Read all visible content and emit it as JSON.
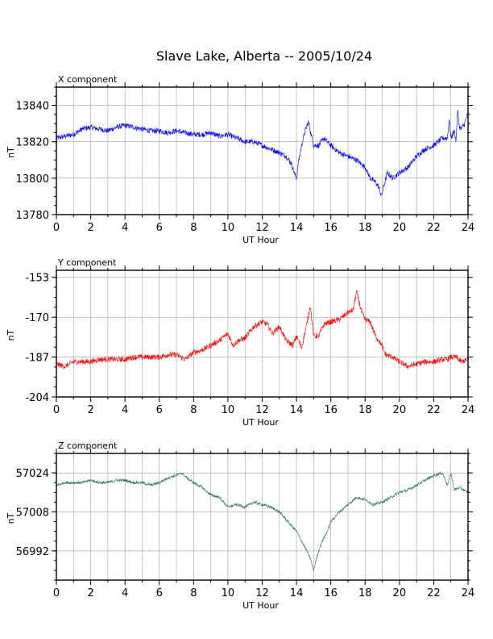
{
  "title": "Slave Lake, Alberta -- 2005/10/24",
  "chart_data": [
    {
      "type": "line",
      "panel_title": "X component",
      "xlabel": "UT Hour",
      "ylabel": "nT",
      "xlim": [
        0,
        24
      ],
      "ylim": [
        13780,
        13850
      ],
      "xticks": [
        0,
        2,
        4,
        6,
        8,
        10,
        12,
        14,
        16,
        18,
        20,
        22,
        24
      ],
      "yticks": [
        13780,
        13800,
        13820,
        13840
      ],
      "grid": true,
      "series": [
        {
          "color": "#0000ff",
          "noise": 1.5,
          "x": [
            0,
            0.5,
            1,
            1.5,
            2,
            2.5,
            3,
            3.5,
            4,
            4.5,
            5,
            5.5,
            6,
            6.5,
            7,
            7.5,
            8,
            8.5,
            9,
            9.5,
            10,
            10.5,
            11,
            11.5,
            12,
            12.5,
            13,
            13.4,
            13.7,
            13.9,
            14.0,
            14.1,
            14.3,
            14.5,
            14.7,
            14.8,
            15.0,
            15.3,
            15.6,
            16,
            16.5,
            17,
            17.5,
            18,
            18.3,
            18.6,
            18.8,
            18.95,
            19.1,
            19.3,
            19.6,
            20,
            20.5,
            21,
            21.5,
            22,
            22.5,
            22.8,
            22.9,
            23.0,
            23.2,
            23.3,
            23.4,
            23.5,
            23.6,
            23.8,
            24
          ],
          "y": [
            13822,
            13823,
            13824,
            13827,
            13828,
            13827,
            13826,
            13828,
            13829,
            13828,
            13827,
            13826,
            13826,
            13825,
            13826,
            13825,
            13824,
            13824,
            13825,
            13823,
            13824,
            13822,
            13820,
            13820,
            13818,
            13816,
            13814,
            13812,
            13808,
            13802,
            13800,
            13808,
            13818,
            13826,
            13831,
            13826,
            13818,
            13818,
            13822,
            13818,
            13814,
            13812,
            13810,
            13806,
            13800,
            13798,
            13795,
            13790,
            13796,
            13803,
            13800,
            13803,
            13806,
            13812,
            13816,
            13818,
            13822,
            13822,
            13832,
            13822,
            13826,
            13820,
            13837,
            13828,
            13827,
            13830,
            13836
          ]
        }
      ]
    },
    {
      "type": "line",
      "panel_title": "Y component",
      "xlabel": "UT Hour",
      "ylabel": "nT",
      "xlim": [
        0,
        24
      ],
      "ylim": [
        -204,
        -150
      ],
      "xticks": [
        0,
        2,
        4,
        6,
        8,
        10,
        12,
        14,
        16,
        18,
        20,
        22,
        24
      ],
      "yticks": [
        -153,
        -170,
        -187,
        -204
      ],
      "grid": true,
      "series": [
        {
          "color": "#ff0000",
          "noise": 1.2,
          "x": [
            0,
            0.5,
            1,
            1.5,
            2,
            2.5,
            3,
            3.5,
            4,
            4.5,
            5,
            5.5,
            6,
            6.5,
            7,
            7.5,
            8,
            8.5,
            9,
            9.5,
            10,
            10.3,
            10.6,
            11,
            11.5,
            12,
            12.3,
            12.6,
            13,
            13.4,
            13.8,
            14,
            14.3,
            14.6,
            14.8,
            15.0,
            15.3,
            15.6,
            16,
            16.5,
            17,
            17.3,
            17.5,
            17.8,
            18,
            18.3,
            18.6,
            18.9,
            19.2,
            19.6,
            20,
            20.5,
            21,
            21.5,
            22,
            22.5,
            22.8,
            23.0,
            23.3,
            23.6,
            24
          ],
          "y": [
            -190,
            -191,
            -189,
            -189,
            -189,
            -188,
            -188,
            -188,
            -188,
            -187,
            -187,
            -187,
            -187,
            -186,
            -186,
            -188,
            -185,
            -184,
            -182,
            -180,
            -177,
            -182,
            -180,
            -179,
            -174,
            -172,
            -173,
            -177,
            -174,
            -180,
            -182,
            -178,
            -183,
            -173,
            -165,
            -178,
            -178,
            -173,
            -172,
            -171,
            -168,
            -167,
            -159,
            -168,
            -171,
            -172,
            -178,
            -181,
            -186,
            -187,
            -189,
            -191,
            -190,
            -189,
            -189,
            -188,
            -188,
            -187,
            -187,
            -189,
            -188
          ]
        }
      ]
    },
    {
      "type": "line",
      "panel_title": "Z component",
      "xlabel": "UT Hour",
      "ylabel": "nT",
      "xlim": [
        0,
        24
      ],
      "ylim": [
        56980,
        57032
      ],
      "xticks": [
        0,
        2,
        4,
        6,
        8,
        10,
        12,
        14,
        16,
        18,
        20,
        22,
        24
      ],
      "yticks": [
        56992,
        57008,
        57024
      ],
      "grid": true,
      "series": [
        {
          "color": "#2e7d4f",
          "noise": 0.6,
          "x": [
            0,
            0.5,
            1,
            1.5,
            2,
            2.5,
            3,
            3.5,
            4,
            4.5,
            5,
            5.5,
            6,
            6.5,
            7,
            7.3,
            7.6,
            8,
            8.5,
            9,
            9.5,
            10,
            10.5,
            11,
            11.5,
            12,
            12.5,
            13,
            13.5,
            14,
            14.3,
            14.6,
            14.8,
            15,
            15.2,
            15.5,
            15.8,
            16,
            16.5,
            17,
            17.5,
            18,
            18.5,
            19,
            19.5,
            20,
            20.5,
            21,
            21.5,
            22,
            22.5,
            22.8,
            23.0,
            23.2,
            23.5,
            24
          ],
          "y": [
            57019,
            57020,
            57020,
            57020,
            57021,
            57020,
            57020,
            57021,
            57021,
            57020,
            57020,
            57019,
            57020,
            57022,
            57023,
            57024,
            57022,
            57020,
            57018,
            57015,
            57014,
            57010,
            57011,
            57010,
            57012,
            57011,
            57010,
            57008,
            57004,
            57000,
            56996,
            56992,
            56989,
            56984,
            56990,
            56996,
            57000,
            57004,
            57008,
            57011,
            57014,
            57013,
            57011,
            57012,
            57014,
            57016,
            57017,
            57019,
            57021,
            57023,
            57024,
            57019,
            57024,
            57017,
            57018,
            57016
          ]
        }
      ]
    }
  ]
}
